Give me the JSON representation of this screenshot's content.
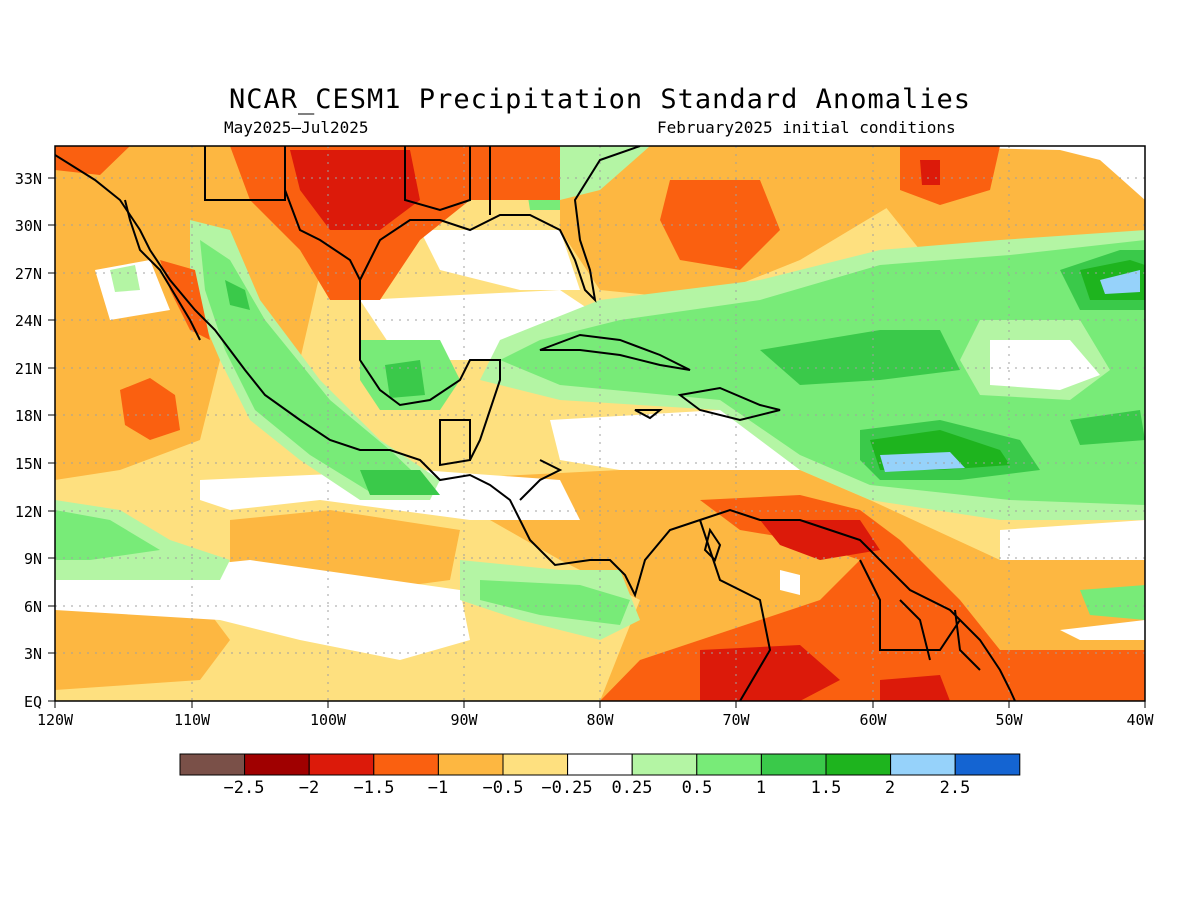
{
  "title": "NCAR_CESM1 Precipitation Standard Anomalies",
  "subtitle_left": "May2025–Jul2025",
  "subtitle_right": "February2025 initial conditions",
  "lat_ticks": [
    "33N",
    "30N",
    "27N",
    "24N",
    "21N",
    "18N",
    "15N",
    "12N",
    "9N",
    "6N",
    "3N",
    "EQ"
  ],
  "lon_ticks": [
    "120W",
    "110W",
    "100W",
    "90W",
    "80W",
    "70W",
    "60W",
    "50W",
    "40W"
  ],
  "colorbar": {
    "colors": [
      "#7a5048",
      "#a00000",
      "#dc1a0a",
      "#fa6010",
      "#fdb741",
      "#fee07f",
      "#ffffff",
      "#b4f5a4",
      "#78eb78",
      "#3ac94a",
      "#1eb41e",
      "#96d2fa",
      "#1464d2"
    ],
    "labels": [
      "−2.5",
      "−2",
      "−1.5",
      "−1",
      "−0.5",
      "−0.25",
      "0.25",
      "0.5",
      "1",
      "1.5",
      "2",
      "2.5"
    ]
  }
}
